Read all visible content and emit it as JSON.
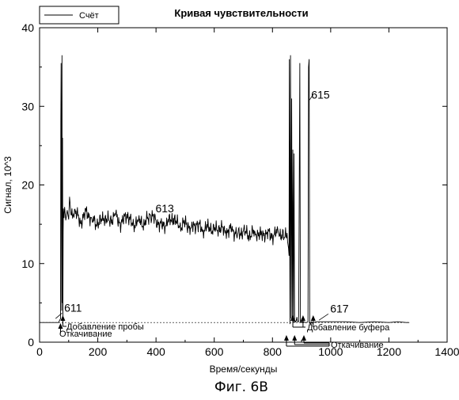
{
  "chart_data": {
    "type": "line",
    "title": "Кривая чувствительности",
    "xlabel": "Время/секунды",
    "ylabel": "Сигнал, 10^3",
    "xlim": [
      0,
      1400
    ],
    "ylim": [
      0,
      40
    ],
    "x_ticks": [
      0,
      200,
      400,
      600,
      800,
      1000,
      1200,
      1400
    ],
    "y_ticks": [
      0,
      10,
      20,
      30,
      40
    ],
    "grid": false,
    "legend": {
      "position": "top-left",
      "entries": [
        "Счёт"
      ]
    },
    "series": [
      {
        "name": "Счёт",
        "color": "#000000",
        "x": [
          0,
          25,
          50,
          65,
          72,
          73,
          74,
          76,
          77,
          78,
          79,
          80,
          81,
          82,
          83,
          84,
          86,
          90,
          95,
          100,
          103,
          108,
          120,
          140,
          160,
          180,
          200,
          220,
          240,
          260,
          280,
          300,
          320,
          340,
          360,
          380,
          400,
          420,
          440,
          460,
          480,
          500,
          520,
          540,
          560,
          580,
          600,
          620,
          640,
          660,
          680,
          700,
          720,
          740,
          760,
          780,
          800,
          820,
          840,
          850,
          852,
          855,
          857,
          858,
          860,
          862,
          864,
          866,
          868,
          870,
          872,
          874,
          876,
          878,
          880,
          882,
          884,
          886,
          890,
          894,
          896,
          898,
          900,
          902,
          904,
          906,
          908,
          912,
          918,
          922,
          924,
          926,
          928,
          930,
          932,
          934,
          936,
          938,
          940,
          950,
          1000,
          1050,
          1100,
          1150,
          1200,
          1230,
          1260,
          1270
        ],
        "y": [
          2.5,
          2.5,
          2.5,
          2.5,
          3.0,
          28.0,
          35.5,
          4.0,
          36.5,
          5.0,
          26.0,
          2.3,
          14.0,
          17.0,
          16.0,
          15.8,
          17.2,
          15.5,
          16.8,
          15.6,
          18.5,
          16.2,
          16.9,
          15.2,
          16.6,
          15.6,
          15.0,
          15.8,
          15.4,
          16.1,
          15.0,
          16.3,
          14.8,
          15.6,
          15.0,
          16.2,
          15.5,
          14.7,
          15.2,
          15.8,
          14.6,
          15.2,
          14.5,
          15.0,
          14.3,
          14.7,
          14.2,
          14.6,
          14.0,
          14.3,
          13.7,
          14.1,
          13.6,
          14.0,
          13.6,
          13.9,
          13.5,
          14.0,
          13.3,
          13.9,
          12.8,
          12.0,
          11.0,
          36.0,
          2.3,
          36.5,
          3.0,
          31.0,
          3.0,
          24.5,
          2.5,
          24.0,
          2.5,
          2.7,
          2.6,
          2.8,
          3.2,
          2.6,
          2.6,
          35.5,
          2.5,
          2.5,
          2.8,
          2.5,
          2.6,
          2.5,
          2.6,
          2.5,
          2.5,
          2.6,
          35.0,
          36.0,
          2.4,
          2.5,
          2.3,
          2.6,
          2.5,
          2.4,
          2.5,
          2.6,
          2.6,
          2.6,
          2.5,
          2.6,
          2.5,
          2.6,
          2.5,
          2.5
        ]
      }
    ],
    "annotations": [
      {
        "id": "ref-611",
        "text": "611",
        "x": 115,
        "y": 3.9,
        "arrow_to": [
          55,
          3.0
        ]
      },
      {
        "id": "ref-613",
        "text": "613",
        "x": 430,
        "y": 16.5,
        "arrow_to": null
      },
      {
        "id": "ref-615",
        "text": "615",
        "x": 965,
        "y": 31.0,
        "arrow_to": [
          940,
          31.5
        ]
      },
      {
        "id": "ref-617",
        "text": "617",
        "x": 1030,
        "y": 3.8,
        "arrow_to": [
          960,
          2.8
        ]
      }
    ],
    "events": {
      "sample_add": {
        "label": "Добавление пробы",
        "markers": [
          80
        ]
      },
      "pump_out_1": {
        "label": "Откачивание",
        "markers": [
          72
        ]
      },
      "buffer_add": {
        "label": "Добавление буфера",
        "markers": [
          870,
          905,
          940
        ]
      },
      "pump_out_2": {
        "label": "Откачивание",
        "markers": [
          848,
          876,
          908
        ]
      }
    }
  },
  "figure_caption": "Фиг. 6В"
}
